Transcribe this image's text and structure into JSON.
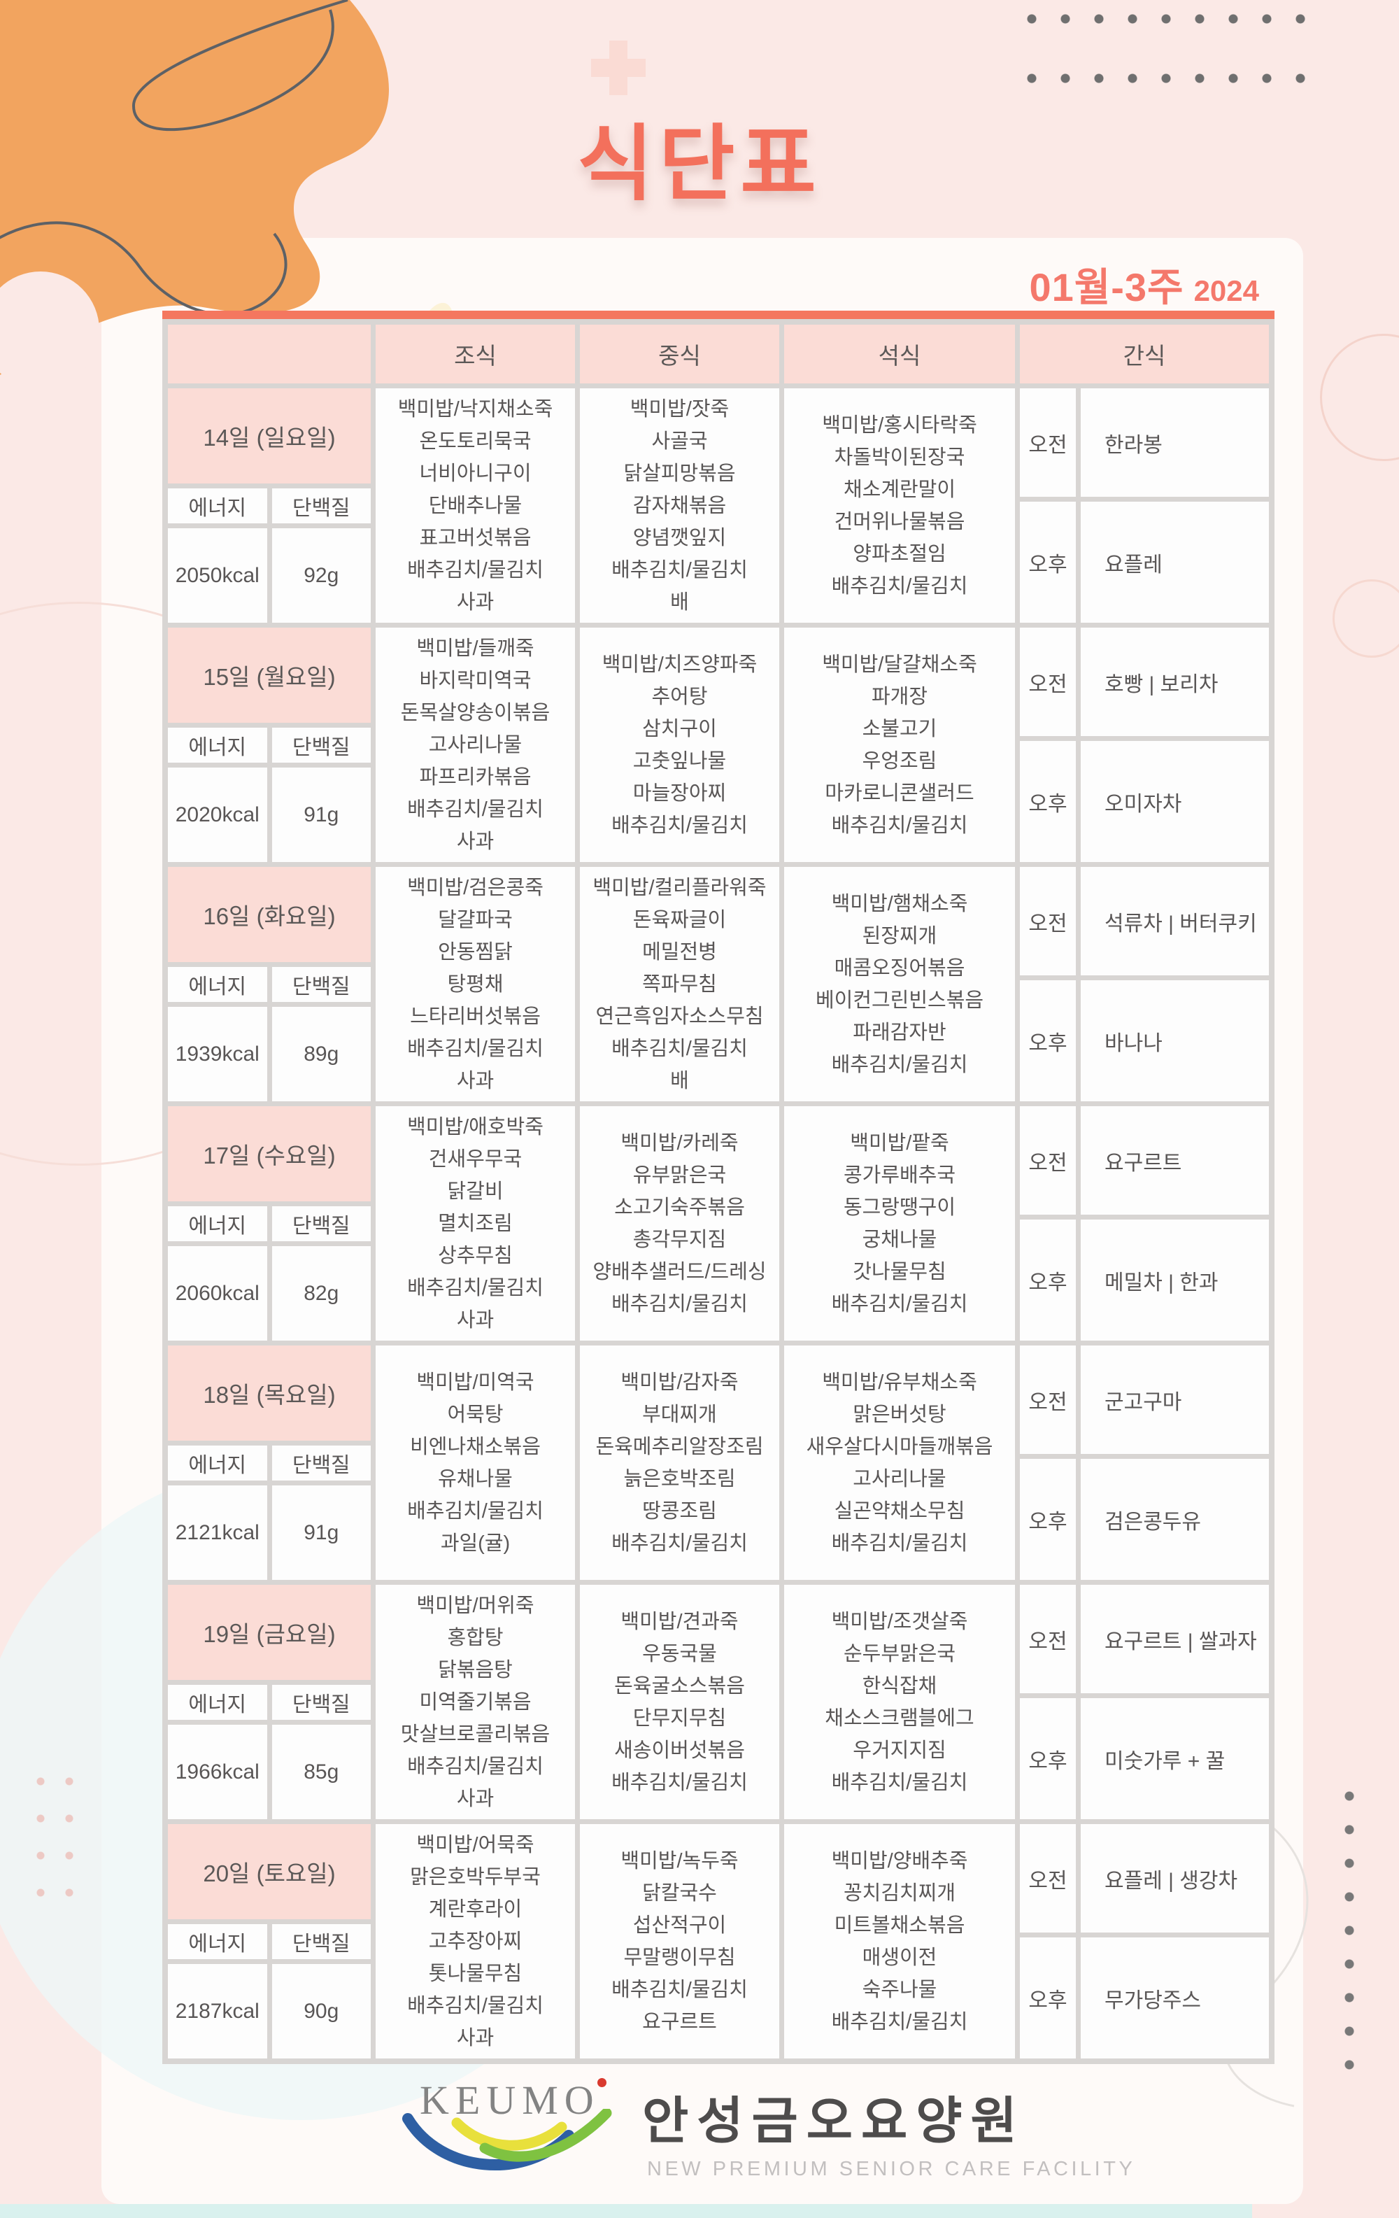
{
  "page": {
    "title": "식단표",
    "week_label": "01월-3주",
    "year": "2024"
  },
  "table": {
    "headers": {
      "breakfast": "조식",
      "lunch": "중식",
      "dinner": "석식",
      "snack": "간식"
    },
    "labels": {
      "energy": "에너지",
      "protein": "단백질",
      "morning": "오전",
      "afternoon": "오후"
    },
    "days": [
      {
        "date": "14일 (일요일)",
        "energy": "2050kcal",
        "protein": "92g",
        "breakfast": [
          "백미밥/낙지채소죽",
          "온도토리묵국",
          "너비아니구이",
          "단배추나물",
          "표고버섯볶음",
          "배추김치/물김치",
          "사과"
        ],
        "lunch": [
          "백미밥/잣죽",
          "사골국",
          "닭살피망볶음",
          "감자채볶음",
          "양념깻잎지",
          "배추김치/물김치",
          "배"
        ],
        "dinner": [
          "백미밥/홍시타락죽",
          "차돌박이된장국",
          "채소계란말이",
          "건머위나물볶음",
          "양파초절임",
          "배추김치/물김치"
        ],
        "snack_morning": "한라봉",
        "snack_afternoon": "요플레"
      },
      {
        "date": "15일 (월요일)",
        "energy": "2020kcal",
        "protein": "91g",
        "breakfast": [
          "백미밥/들깨죽",
          "바지락미역국",
          "돈목살양송이볶음",
          "고사리나물",
          "파프리카볶음",
          "배추김치/물김치",
          "사과"
        ],
        "lunch": [
          "백미밥/치즈양파죽",
          "추어탕",
          "삼치구이",
          "고춧잎나물",
          "마늘장아찌",
          "배추김치/물김치"
        ],
        "dinner": [
          "백미밥/달걀채소죽",
          "파개장",
          "소불고기",
          "우엉조림",
          "마카로니콘샐러드",
          "배추김치/물김치"
        ],
        "snack_morning": "호빵 | 보리차",
        "snack_afternoon": "오미자차"
      },
      {
        "date": "16일 (화요일)",
        "energy": "1939kcal",
        "protein": "89g",
        "breakfast": [
          "백미밥/검은콩죽",
          "달걀파국",
          "안동찜닭",
          "탕평채",
          "느타리버섯볶음",
          "배추김치/물김치",
          "사과"
        ],
        "lunch": [
          "백미밥/컬리플라워죽",
          "돈육짜글이",
          "메밀전병",
          "쪽파무침",
          "연근흑임자소스무침",
          "배추김치/물김치",
          "배"
        ],
        "dinner": [
          "백미밥/햄채소죽",
          "된장찌개",
          "매콤오징어볶음",
          "베이컨그린빈스볶음",
          "파래감자반",
          "배추김치/물김치"
        ],
        "snack_morning": "석류차 | 버터쿠키",
        "snack_afternoon": "바나나"
      },
      {
        "date": "17일 (수요일)",
        "energy": "2060kcal",
        "protein": "82g",
        "breakfast": [
          "백미밥/애호박죽",
          "건새우무국",
          "닭갈비",
          "멸치조림",
          "상추무침",
          "배추김치/물김치",
          "사과"
        ],
        "lunch": [
          "백미밥/카레죽",
          "유부맑은국",
          "소고기숙주볶음",
          "총각무지짐",
          "양배추샐러드/드레싱",
          "배추김치/물김치"
        ],
        "dinner": [
          "백미밥/팥죽",
          "콩가루배추국",
          "동그랑땡구이",
          "궁채나물",
          "갓나물무침",
          "배추김치/물김치"
        ],
        "snack_morning": "요구르트",
        "snack_afternoon": "메밀차 | 한과"
      },
      {
        "date": "18일 (목요일)",
        "energy": "2121kcal",
        "protein": "91g",
        "breakfast": [
          "백미밥/미역국",
          "어묵탕",
          "비엔나채소볶음",
          "유채나물",
          "배추김치/물김치",
          "과일(귤)"
        ],
        "lunch": [
          "백미밥/감자죽",
          "부대찌개",
          "돈육메추리알장조림",
          "늙은호박조림",
          "땅콩조림",
          "배추김치/물김치"
        ],
        "dinner": [
          "백미밥/유부채소죽",
          "맑은버섯탕",
          "새우살다시마들깨볶음",
          "고사리나물",
          "실곤약채소무침",
          "배추김치/물김치"
        ],
        "snack_morning": "군고구마",
        "snack_afternoon": "검은콩두유"
      },
      {
        "date": "19일 (금요일)",
        "energy": "1966kcal",
        "protein": "85g",
        "breakfast": [
          "백미밥/머위죽",
          "홍합탕",
          "닭볶음탕",
          "미역줄기볶음",
          "맛살브로콜리볶음",
          "배추김치/물김치",
          "사과"
        ],
        "lunch": [
          "백미밥/견과죽",
          "우동국물",
          "돈육굴소스볶음",
          "단무지무침",
          "새송이버섯볶음",
          "배추김치/물김치"
        ],
        "dinner": [
          "백미밥/조갯살죽",
          "순두부맑은국",
          "한식잡채",
          "채소스크램블에그",
          "우거지지짐",
          "배추김치/물김치"
        ],
        "snack_morning": "요구르트 | 쌀과자",
        "snack_afternoon": "미숫가루 + 꿀"
      },
      {
        "date": "20일 (토요일)",
        "energy": "2187kcal",
        "protein": "90g",
        "breakfast": [
          "백미밥/어묵죽",
          "맑은호박두부국",
          "계란후라이",
          "고추장아찌",
          "톳나물무침",
          "배추김치/물김치",
          "사과"
        ],
        "lunch": [
          "백미밥/녹두죽",
          "닭칼국수",
          "섭산적구이",
          "무말랭이무침",
          "배추김치/물김치",
          "요구르트"
        ],
        "dinner": [
          "백미밥/양배추죽",
          "꽁치김치찌개",
          "미트볼채소볶음",
          "매생이전",
          "숙주나물",
          "배추김치/물김치"
        ],
        "snack_morning": "요플레 | 생강차",
        "snack_afternoon": "무가당주스"
      }
    ]
  },
  "footer": {
    "logo_text": "KEUMO",
    "facility_name": "안성금오요양원",
    "facility_subtitle": "NEW PREMIUM SENIOR CARE FACILITY"
  },
  "colors": {
    "accent_coral": "#f4775f",
    "title_coral": "#f3705c",
    "page_pink": "#fbe9e6",
    "cell_pink": "#fbdcd6",
    "grid_gray": "#d8d5d3",
    "text_gray": "#595656",
    "blob_orange": "#f2a45f",
    "cyan_strip": "#d9f1ee",
    "logo_blue": "#2e5fa3",
    "logo_yellow": "#e8e03c",
    "logo_green": "#7fc241",
    "logo_red": "#d93a2f"
  }
}
